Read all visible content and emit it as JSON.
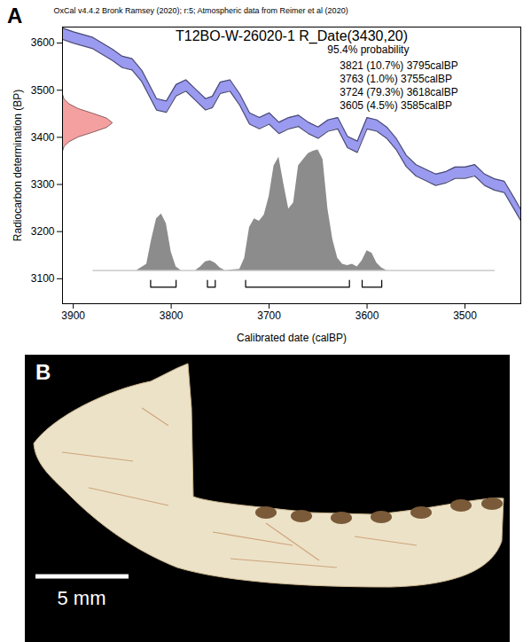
{
  "chart_data": {
    "type": "calibration",
    "panel": "A",
    "header": "OxCal v4.4.2 Bronk Ramsey (2020); r:5; Atmospheric data from Reimer et al (2020)",
    "title": "T12BO-W-26020-1 R_Date(3430,20)",
    "x_label": "Calibrated date (calBP)",
    "y_label": "Radiocarbon determination (BP)",
    "xlim": [
      3911,
      3443
    ],
    "ylim": [
      3047,
      3634
    ],
    "xticks": [
      3900,
      3800,
      3700,
      3600,
      3500
    ],
    "yticks": [
      3100,
      3200,
      3300,
      3400,
      3500,
      3600
    ],
    "curve": {
      "color": "#9a9af0",
      "x": [
        3911,
        3900,
        3880,
        3860,
        3850,
        3840,
        3830,
        3815,
        3805,
        3795,
        3785,
        3775,
        3765,
        3758,
        3750,
        3740,
        3730,
        3720,
        3710,
        3700,
        3690,
        3680,
        3670,
        3660,
        3650,
        3640,
        3630,
        3620,
        3610,
        3600,
        3590,
        3580,
        3570,
        3560,
        3550,
        3540,
        3530,
        3520,
        3510,
        3500,
        3490,
        3480,
        3470,
        3460,
        3450,
        3443
      ],
      "lower": [
        3608,
        3600,
        3588,
        3563,
        3548,
        3543,
        3518,
        3458,
        3453,
        3488,
        3498,
        3478,
        3458,
        3463,
        3493,
        3498,
        3468,
        3428,
        3418,
        3428,
        3408,
        3418,
        3423,
        3408,
        3398,
        3413,
        3418,
        3378,
        3368,
        3418,
        3413,
        3398,
        3373,
        3338,
        3318,
        3308,
        3298,
        3303,
        3313,
        3313,
        3318,
        3298,
        3288,
        3283,
        3248,
        3223
      ],
      "upper": [
        3632,
        3624,
        3612,
        3587,
        3572,
        3567,
        3542,
        3482,
        3477,
        3512,
        3522,
        3502,
        3482,
        3487,
        3517,
        3522,
        3492,
        3452,
        3442,
        3452,
        3432,
        3442,
        3447,
        3432,
        3422,
        3437,
        3442,
        3402,
        3392,
        3442,
        3437,
        3422,
        3397,
        3362,
        3342,
        3332,
        3322,
        3327,
        3337,
        3337,
        3342,
        3322,
        3312,
        3307,
        3272,
        3247
      ]
    },
    "measurement": {
      "color": "#f4a0a0",
      "y": [
        3370,
        3380,
        3390,
        3400,
        3410,
        3420,
        3430,
        3440,
        3450,
        3460,
        3470,
        3480,
        3490
      ],
      "density": [
        0.01,
        0.04,
        0.14,
        0.32,
        0.61,
        0.88,
        1,
        0.88,
        0.61,
        0.32,
        0.14,
        0.04,
        0.01
      ]
    },
    "distribution": {
      "color": "#8c8c8c",
      "baseline": [
        3880,
        3470
      ],
      "x": [
        3835,
        3825,
        3820,
        3815,
        3810,
        3805,
        3800,
        3795,
        3790,
        3775,
        3770,
        3765,
        3760,
        3755,
        3750,
        3745,
        3730,
        3725,
        3720,
        3715,
        3710,
        3705,
        3700,
        3695,
        3690,
        3685,
        3680,
        3675,
        3670,
        3665,
        3660,
        3655,
        3650,
        3645,
        3640,
        3635,
        3630,
        3625,
        3620,
        3615,
        3610,
        3605,
        3600,
        3595,
        3590,
        3585,
        3580
      ],
      "density": [
        0,
        0.05,
        0.25,
        0.42,
        0.46,
        0.38,
        0.15,
        0.03,
        0,
        0,
        0.03,
        0.07,
        0.08,
        0.06,
        0.02,
        0,
        0.01,
        0.1,
        0.35,
        0.42,
        0.4,
        0.45,
        0.6,
        0.85,
        0.92,
        0.7,
        0.5,
        0.55,
        0.85,
        0.9,
        0.95,
        0.97,
        0.98,
        0.9,
        0.5,
        0.25,
        0.1,
        0.05,
        0.04,
        0.05,
        0.03,
        0.08,
        0.16,
        0.14,
        0.06,
        0.02,
        0
      ]
    },
    "probability_label": "95.4% probability",
    "ranges": [
      {
        "from": 3821,
        "to": 3795,
        "label": "3821 (10.7%) 3795calBP"
      },
      {
        "from": 3763,
        "to": 3755,
        "label": "3763 (1.0%) 3755calBP"
      },
      {
        "from": 3724,
        "to": 3618,
        "label": "3724 (79.3%) 3618calBP"
      },
      {
        "from": 3605,
        "to": 3585,
        "label": "3605 (4.5%) 3585calBP"
      }
    ]
  },
  "panel_b": {
    "label": "B",
    "scale_bar": "5 mm"
  }
}
